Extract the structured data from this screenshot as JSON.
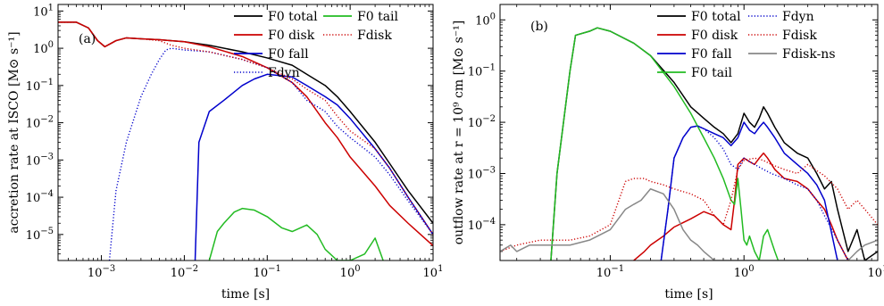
{
  "chart_data": [
    {
      "type": "line",
      "panel_label": "(a)",
      "xlabel": "time [s]",
      "ylabel": "accretion rate at ISCO [M⊙ s⁻¹]",
      "xscale": "log",
      "yscale": "log",
      "xlim": [
        0.0003,
        10
      ],
      "ylim": [
        2e-06,
        15
      ],
      "x_ticks": [
        {
          "v": 0.001,
          "label": "10^-3"
        },
        {
          "v": 0.01,
          "label": "10^-2"
        },
        {
          "v": 0.1,
          "label": "10^-1"
        },
        {
          "v": 1,
          "label": "10^0"
        },
        {
          "v": 10,
          "label": "10^1"
        }
      ],
      "y_ticks": [
        {
          "v": 1e-05,
          "label": "10^-5"
        },
        {
          "v": 0.0001,
          "label": "10^-4"
        },
        {
          "v": 0.001,
          "label": "10^-3"
        },
        {
          "v": 0.01,
          "label": "10^-2"
        },
        {
          "v": 0.1,
          "label": "10^-1"
        },
        {
          "v": 1,
          "label": "10^0"
        },
        {
          "v": 10,
          "label": "10^1"
        }
      ],
      "legend_position": "top-right",
      "legend_columns": [
        [
          "F0 total",
          "F0 disk",
          "F0 fall",
          "Fdyn"
        ],
        [
          "F0 tail",
          "Fdisk"
        ]
      ],
      "legend_order": [
        "F0 total",
        "F0 tail",
        "F0 disk",
        "Fdyn",
        "F0 fall",
        "Fdisk"
      ],
      "series": [
        {
          "name": "F0 total",
          "color": "#000000",
          "dash": "solid",
          "x": [
            0.0003,
            0.0005,
            0.0007,
            0.0009,
            0.0011,
            0.0015,
            0.002,
            0.003,
            0.005,
            0.007,
            0.01,
            0.02,
            0.05,
            0.1,
            0.2,
            0.3,
            0.5,
            0.7,
            1,
            2,
            3,
            5,
            10
          ],
          "y": [
            5,
            5,
            3.5,
            1.6,
            1.1,
            1.6,
            1.9,
            1.8,
            1.7,
            1.6,
            1.5,
            1.2,
            0.8,
            0.55,
            0.35,
            0.2,
            0.1,
            0.05,
            0.02,
            0.003,
            0.0008,
            0.00015,
            2e-05
          ]
        },
        {
          "name": "F0 disk",
          "color": "#cc0000",
          "dash": "solid",
          "x": [
            0.0003,
            0.0005,
            0.0007,
            0.0009,
            0.0011,
            0.0015,
            0.002,
            0.003,
            0.005,
            0.007,
            0.01,
            0.02,
            0.05,
            0.1,
            0.2,
            0.3,
            0.5,
            0.7,
            1,
            2,
            3,
            5,
            10
          ],
          "y": [
            5,
            5,
            3.5,
            1.6,
            1.1,
            1.6,
            1.9,
            1.8,
            1.7,
            1.6,
            1.5,
            1.1,
            0.6,
            0.3,
            0.12,
            0.05,
            0.01,
            0.004,
            0.0012,
            0.0002,
            6e-05,
            2e-05,
            5e-06
          ]
        },
        {
          "name": "F0 fall",
          "color": "#0000cc",
          "dash": "solid",
          "x": [
            0.0135,
            0.015,
            0.02,
            0.03,
            0.05,
            0.07,
            0.1,
            0.2,
            0.3,
            0.5,
            0.7,
            1,
            2,
            3,
            5,
            10
          ],
          "y": [
            2e-06,
            0.003,
            0.02,
            0.04,
            0.1,
            0.15,
            0.2,
            0.17,
            0.1,
            0.05,
            0.03,
            0.013,
            0.002,
            0.0006,
            0.0001,
            1e-05
          ]
        },
        {
          "name": "F0 tail",
          "color": "#22bb22",
          "dash": "solid",
          "x": [
            0.02,
            0.025,
            0.03,
            0.04,
            0.05,
            0.07,
            0.1,
            0.15,
            0.2,
            0.3,
            0.4,
            0.5,
            0.7,
            1,
            1.5,
            2,
            2.5
          ],
          "y": [
            2e-06,
            1.2e-05,
            2e-05,
            4e-05,
            5e-05,
            4.5e-05,
            3e-05,
            1.5e-05,
            1.2e-05,
            1.8e-05,
            1e-05,
            4e-06,
            2e-06,
            2e-06,
            3e-06,
            8e-06,
            2e-06
          ]
        },
        {
          "name": "Fdyn",
          "color": "#0000cc",
          "dash": "dotted",
          "x": [
            0.00125,
            0.0015,
            0.002,
            0.003,
            0.004,
            0.005,
            0.006,
            0.007,
            0.01,
            0.02,
            0.05,
            0.1,
            0.2,
            0.3,
            0.5,
            0.7,
            1,
            2,
            3,
            5,
            10
          ],
          "y": [
            2e-06,
            0.00015,
            0.003,
            0.05,
            0.2,
            0.5,
            0.9,
            1,
            0.9,
            0.8,
            0.5,
            0.3,
            0.12,
            0.04,
            0.02,
            0.008,
            0.004,
            0.0012,
            0.0004,
            8e-05,
            1e-05
          ]
        },
        {
          "name": "Fdisk",
          "color": "#cc0000",
          "dash": "dotted",
          "x": [
            0.0003,
            0.0005,
            0.0007,
            0.0009,
            0.0011,
            0.0015,
            0.002,
            0.003,
            0.005,
            0.007,
            0.01,
            0.02,
            0.05,
            0.1,
            0.2,
            0.3,
            0.5,
            0.7,
            1,
            2,
            3,
            5,
            10
          ],
          "y": [
            5,
            5,
            3.5,
            1.6,
            1.1,
            1.6,
            1.9,
            1.8,
            1.6,
            1.2,
            1,
            0.8,
            0.5,
            0.3,
            0.15,
            0.08,
            0.04,
            0.015,
            0.006,
            0.002,
            0.0006,
            0.0001,
            1e-05
          ]
        }
      ]
    },
    {
      "type": "line",
      "panel_label": "(b)",
      "xlabel": "time [s]",
      "ylabel": "outflow rate at r = 10⁹ cm [M⊙ s⁻¹]",
      "xscale": "log",
      "yscale": "log",
      "xlim": [
        0.015,
        10
      ],
      "ylim": [
        2e-05,
        2
      ],
      "x_ticks": [
        {
          "v": 0.1,
          "label": "10^-1"
        },
        {
          "v": 1,
          "label": "10^0"
        },
        {
          "v": 10,
          "label": "10^1"
        }
      ],
      "y_ticks": [
        {
          "v": 0.0001,
          "label": "10^-4"
        },
        {
          "v": 0.001,
          "label": "10^-3"
        },
        {
          "v": 0.01,
          "label": "10^-2"
        },
        {
          "v": 0.1,
          "label": "10^-1"
        },
        {
          "v": 1,
          "label": "10^0"
        }
      ],
      "legend_position": "top-right",
      "legend_columns": [
        [
          "F0 total",
          "F0 disk",
          "F0 fall",
          "F0 tail"
        ],
        [
          "Fdyn",
          "Fdisk",
          "Fdisk-ns"
        ]
      ],
      "legend_order": [
        "F0 total",
        "Fdyn",
        "F0 disk",
        "Fdisk",
        "F0 fall",
        "Fdisk-ns",
        "F0 tail"
      ],
      "series": [
        {
          "name": "F0 total",
          "color": "#000000",
          "dash": "solid",
          "x": [
            0.036,
            0.04,
            0.05,
            0.055,
            0.07,
            0.08,
            0.1,
            0.15,
            0.2,
            0.3,
            0.4,
            0.5,
            0.6,
            0.7,
            0.8,
            0.9,
            1,
            1.1,
            1.2,
            1.3,
            1.4,
            1.5,
            1.7,
            2,
            2.5,
            3,
            3.5,
            4,
            4.5,
            5,
            6,
            7,
            8,
            10
          ],
          "y": [
            2e-05,
            0.001,
            0.1,
            0.5,
            0.6,
            0.7,
            0.6,
            0.35,
            0.2,
            0.06,
            0.02,
            0.012,
            0.008,
            0.006,
            0.004,
            0.006,
            0.015,
            0.01,
            0.008,
            0.012,
            0.02,
            0.015,
            0.008,
            0.004,
            0.0025,
            0.002,
            0.001,
            0.0005,
            0.0007,
            0.0002,
            3e-05,
            8e-05,
            2e-05,
            3e-05
          ]
        },
        {
          "name": "F0 disk",
          "color": "#cc0000",
          "dash": "solid",
          "x": [
            0.15,
            0.18,
            0.2,
            0.25,
            0.3,
            0.4,
            0.5,
            0.6,
            0.7,
            0.8,
            0.85,
            0.9,
            1,
            1.1,
            1.2,
            1.3,
            1.4,
            1.5,
            1.7,
            2,
            2.5,
            3,
            3.5,
            4,
            4.5,
            5,
            6
          ],
          "y": [
            2e-05,
            3e-05,
            4e-05,
            6e-05,
            9e-05,
            0.00013,
            0.00018,
            0.00015,
            0.0001,
            8e-05,
            0.0003,
            0.0015,
            0.002,
            0.0017,
            0.0015,
            0.002,
            0.0025,
            0.002,
            0.0012,
            0.0008,
            0.0007,
            0.0005,
            0.0003,
            0.0002,
            0.0001,
            5e-05,
            2e-05
          ]
        },
        {
          "name": "F0 fall",
          "color": "#0000cc",
          "dash": "solid",
          "x": [
            0.24,
            0.27,
            0.3,
            0.35,
            0.4,
            0.45,
            0.5,
            0.6,
            0.7,
            0.8,
            0.9,
            1,
            1.1,
            1.2,
            1.3,
            1.4,
            1.5,
            1.7,
            2,
            2.5,
            3,
            3.5,
            4,
            5
          ],
          "y": [
            2e-05,
            0.0002,
            0.002,
            0.005,
            0.008,
            0.0085,
            0.0075,
            0.006,
            0.005,
            0.0035,
            0.005,
            0.01,
            0.007,
            0.006,
            0.008,
            0.01,
            0.008,
            0.005,
            0.0025,
            0.0015,
            0.001,
            0.0006,
            0.0003,
            2e-05
          ]
        },
        {
          "name": "F0 tail",
          "color": "#22bb22",
          "dash": "solid",
          "x": [
            0.036,
            0.04,
            0.05,
            0.055,
            0.07,
            0.08,
            0.1,
            0.15,
            0.2,
            0.3,
            0.4,
            0.5,
            0.6,
            0.7,
            0.8,
            0.85,
            0.9,
            0.95,
            1,
            1.05,
            1.1,
            1.2,
            1.3,
            1.4,
            1.5,
            1.7,
            1.8
          ],
          "y": [
            2e-05,
            0.001,
            0.1,
            0.5,
            0.6,
            0.7,
            0.6,
            0.35,
            0.2,
            0.05,
            0.015,
            0.005,
            0.002,
            0.0008,
            0.0003,
            0.00025,
            0.0008,
            0.0002,
            5e-05,
            4e-05,
            6e-05,
            3e-05,
            2e-05,
            6e-05,
            8e-05,
            3e-05,
            2e-05
          ]
        },
        {
          "name": "Fdyn",
          "color": "#0000cc",
          "dash": "dotted",
          "x": [
            0.24,
            0.27,
            0.3,
            0.35,
            0.4,
            0.45,
            0.5,
            0.6,
            0.7,
            0.8,
            0.9,
            1,
            1.2,
            1.4,
            1.6,
            2,
            2.5,
            3,
            3.5,
            4,
            5,
            6
          ],
          "y": [
            2e-05,
            0.0002,
            0.002,
            0.005,
            0.008,
            0.0085,
            0.0075,
            0.005,
            0.003,
            0.0015,
            0.0012,
            0.002,
            0.0015,
            0.0012,
            0.001,
            0.0008,
            0.0006,
            0.0005,
            0.0003,
            0.00015,
            5e-05,
            2e-05
          ]
        },
        {
          "name": "Fdisk",
          "color": "#cc0000",
          "dash": "dotted",
          "x": [
            0.015,
            0.02,
            0.03,
            0.04,
            0.05,
            0.07,
            0.1,
            0.13,
            0.15,
            0.18,
            0.2,
            0.25,
            0.3,
            0.4,
            0.5,
            0.6,
            0.7,
            0.8,
            0.9,
            1,
            1.2,
            1.4,
            1.6,
            2,
            2.5,
            3,
            4,
            5,
            6,
            7,
            8,
            10
          ],
          "y": [
            3e-05,
            4e-05,
            5e-05,
            5e-05,
            5e-05,
            6e-05,
            0.0001,
            0.0007,
            0.0008,
            0.0008,
            0.0007,
            0.0006,
            0.0005,
            0.0004,
            0.0003,
            0.00015,
            0.0001,
            0.0003,
            0.0012,
            0.0018,
            0.002,
            0.0018,
            0.0015,
            0.0012,
            0.001,
            0.0015,
            0.0009,
            0.0005,
            0.0002,
            0.0003,
            0.0002,
            0.0001
          ]
        },
        {
          "name": "Fdisk-ns",
          "color": "#888888",
          "dash": "solid",
          "x": [
            0.015,
            0.018,
            0.02,
            0.025,
            0.03,
            0.04,
            0.05,
            0.07,
            0.1,
            0.13,
            0.15,
            0.17,
            0.2,
            0.25,
            0.3,
            0.35,
            0.4,
            0.45,
            0.5,
            0.6,
            0.7,
            0.8,
            0.9,
            1,
            1.5,
            2,
            3,
            4,
            5,
            6,
            7,
            8,
            10
          ],
          "y": [
            3e-05,
            4e-05,
            3e-05,
            4e-05,
            4e-05,
            4e-05,
            4e-05,
            5e-05,
            8e-05,
            0.0002,
            0.00025,
            0.0003,
            0.0005,
            0.0004,
            0.0002,
            8e-05,
            5e-05,
            4e-05,
            3e-05,
            2e-05,
            2e-05,
            2e-05,
            2e-05,
            2e-05,
            2e-05,
            2e-05,
            2e-05,
            2e-05,
            2e-05,
            2e-05,
            3e-05,
            4e-05,
            5e-05
          ]
        }
      ]
    }
  ]
}
